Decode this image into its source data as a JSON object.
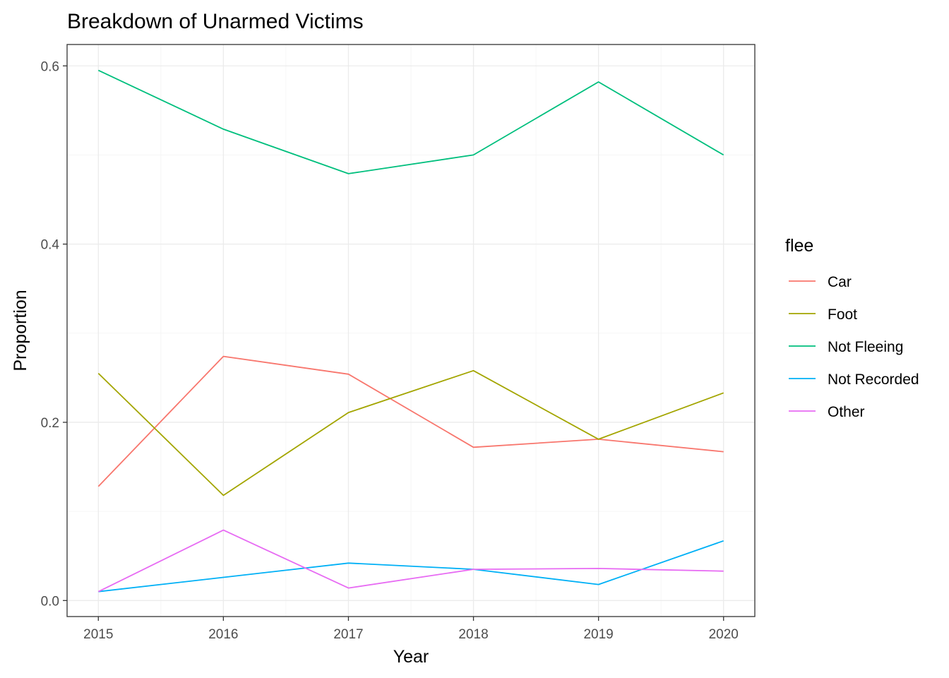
{
  "chart_data": {
    "type": "line",
    "title": "Breakdown of Unarmed Victims",
    "xlabel": "Year",
    "ylabel": "Proportion",
    "x": [
      2015,
      2016,
      2017,
      2018,
      2019,
      2020
    ],
    "x_tick_labels": [
      "2015",
      "2016",
      "2017",
      "2018",
      "2019",
      "2020"
    ],
    "xlim": [
      2014.75,
      2020.25
    ],
    "ylim": [
      -0.018,
      0.624
    ],
    "y_ticks": [
      0.0,
      0.2,
      0.4,
      0.6
    ],
    "y_tick_labels": [
      "0.0",
      "0.2",
      "0.4",
      "0.6"
    ],
    "grid": true,
    "legend": {
      "title": "flee",
      "placement": "right"
    },
    "series": [
      {
        "name": "Car",
        "color": "#F8766D",
        "values": [
          0.128,
          0.274,
          0.254,
          0.172,
          0.181,
          0.167
        ]
      },
      {
        "name": "Foot",
        "color": "#A3A500",
        "values": [
          0.255,
          0.118,
          0.211,
          0.258,
          0.181,
          0.233
        ]
      },
      {
        "name": "Not Fleeing",
        "color": "#00BF7D",
        "values": [
          0.595,
          0.529,
          0.479,
          0.5,
          0.582,
          0.5
        ]
      },
      {
        "name": "Not Recorded",
        "color": "#00B0F6",
        "values": [
          0.01,
          0.026,
          0.042,
          0.035,
          0.018,
          0.067
        ]
      },
      {
        "name": "Other",
        "color": "#E76BF3",
        "values": [
          0.01,
          0.079,
          0.014,
          0.035,
          0.036,
          0.033
        ]
      }
    ]
  }
}
